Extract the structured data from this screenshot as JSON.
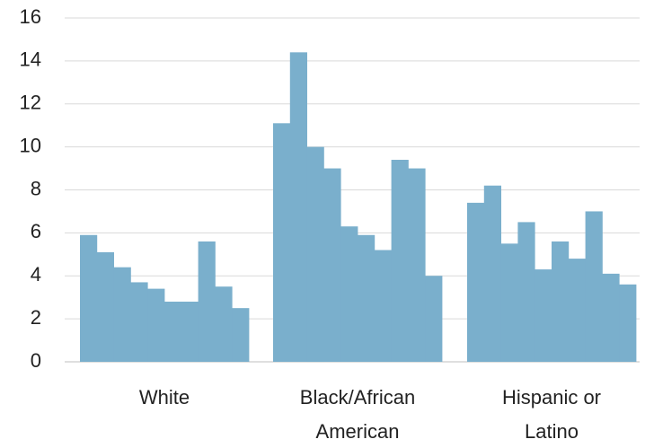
{
  "chart_data": {
    "type": "bar",
    "title": "",
    "xlabel": "",
    "ylabel": "",
    "ylim": [
      0,
      16
    ],
    "yticks": [
      0,
      2,
      4,
      6,
      8,
      10,
      12,
      14,
      16
    ],
    "ytick_labels": [
      "0",
      "2",
      "4",
      "6",
      "8",
      "10",
      "12",
      "14",
      "16"
    ],
    "grid": true,
    "legend": "none",
    "bar_color": "#7aafcc",
    "groups": [
      {
        "label_lines": [
          "White"
        ],
        "values": [
          5.9,
          5.1,
          4.4,
          3.7,
          3.4,
          2.8,
          2.8,
          5.6,
          3.5,
          2.5
        ]
      },
      {
        "label_lines": [
          "Black/African",
          "American"
        ],
        "values": [
          11.1,
          14.4,
          10.0,
          9.0,
          6.3,
          5.9,
          5.2,
          9.4,
          9.0,
          4.0
        ]
      },
      {
        "label_lines": [
          "Hispanic or",
          "Latino"
        ],
        "values": [
          7.4,
          8.2,
          5.5,
          6.5,
          4.3,
          5.6,
          4.8,
          7.0,
          4.1,
          3.6
        ]
      }
    ]
  }
}
